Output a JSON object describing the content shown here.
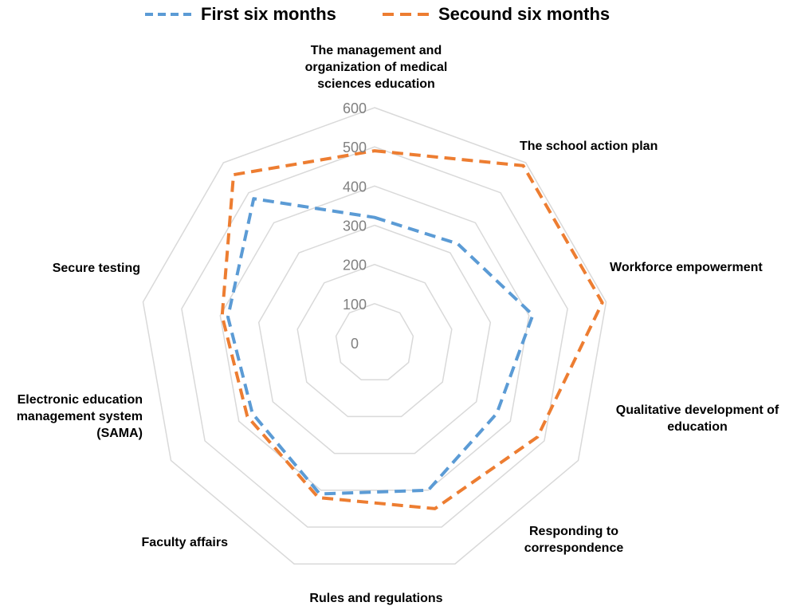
{
  "chart_data": {
    "type": "radar",
    "categories": [
      "The management and organization of medical sciences education",
      "The school action plan",
      "Workforce empowerment",
      "Qualitative development of education",
      "Responding to correspondence",
      "Rules and regulations",
      "Faculty affairs",
      "Electronic education management system (SAMA)",
      "Secure testing"
    ],
    "category_lines": [
      [
        "The management and",
        "organization of medical",
        "sciences education"
      ],
      [
        "The school action plan"
      ],
      [
        "Workforce empowerment"
      ],
      [
        "Qualitative development of",
        "education"
      ],
      [
        "Responding to",
        "correspondence"
      ],
      [
        "Rules and regulations"
      ],
      [
        "Faculty affairs"
      ],
      [
        "Electronic education",
        "management system",
        "(SAMA)"
      ],
      [
        "Secure testing"
      ]
    ],
    "rlim": [
      0,
      600
    ],
    "ticks": [
      0,
      100,
      200,
      300,
      400,
      500,
      600
    ],
    "tick_labels": [
      "0",
      "100",
      "200",
      "300",
      "400",
      "500",
      "600"
    ],
    "grid": true,
    "legend_position": "top",
    "series": [
      {
        "name": "First six months",
        "color": "#5b9bd5",
        "values": [
          320,
          330,
          410,
          360,
          400,
          410,
          360,
          380,
          480
        ]
      },
      {
        "name": "Secound six months",
        "color": "#ed7d31",
        "values": [
          490,
          590,
          590,
          480,
          450,
          420,
          375,
          395,
          560
        ]
      }
    ]
  }
}
